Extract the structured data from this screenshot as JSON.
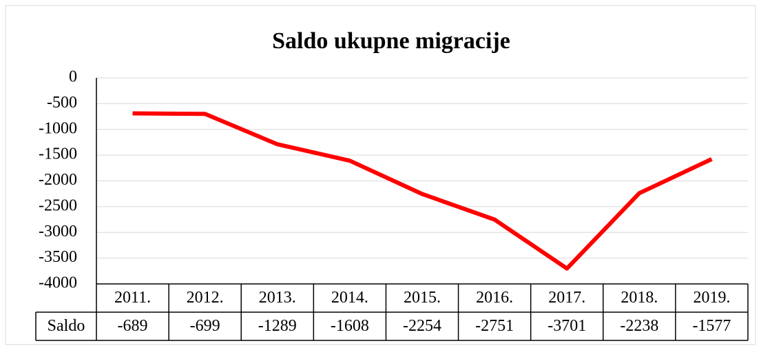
{
  "chart_data": {
    "type": "line",
    "title": "Saldo ukupne migracije",
    "categories": [
      "2011.",
      "2012.",
      "2013.",
      "2014.",
      "2015.",
      "2016.",
      "2017.",
      "2018.",
      "2019."
    ],
    "series": [
      {
        "name": "Saldo",
        "color": "#ff0000",
        "values": [
          -689,
          -699,
          -1289,
          -1608,
          -2254,
          -2751,
          -3701,
          -2238,
          -1577
        ]
      }
    ],
    "ylim": [
      -4000,
      0
    ],
    "yticks": [
      0,
      -500,
      -1000,
      -1500,
      -2000,
      -2500,
      -3000,
      -3500,
      -4000
    ],
    "grid": true
  }
}
